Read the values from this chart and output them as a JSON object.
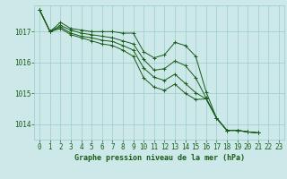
{
  "background_color": "#cce8e8",
  "grid_color": "#99cccc",
  "line_color": "#1a5c1a",
  "text_color": "#1a5c1a",
  "xlabel": "Graphe pression niveau de la mer (hPa)",
  "xlim": [
    -0.5,
    23.5
  ],
  "ylim": [
    1013.5,
    1017.85
  ],
  "yticks": [
    1014,
    1015,
    1016,
    1017
  ],
  "xticks": [
    0,
    1,
    2,
    3,
    4,
    5,
    6,
    7,
    8,
    9,
    10,
    11,
    12,
    13,
    14,
    15,
    16,
    17,
    18,
    19,
    20,
    21,
    22,
    23
  ],
  "series": [
    [
      1017.7,
      1017.0,
      1017.3,
      1017.1,
      1017.05,
      1017.0,
      1017.0,
      1017.0,
      1016.95,
      1016.95,
      1016.35,
      1016.15,
      1016.25,
      1016.65,
      1016.55,
      1016.2,
      1015.05,
      1014.2,
      1013.8,
      1013.8,
      1013.75,
      1013.72
    ],
    [
      1017.7,
      1017.0,
      1017.2,
      1017.05,
      1016.95,
      1016.9,
      1016.85,
      1016.8,
      1016.7,
      1016.6,
      1016.1,
      1015.75,
      1015.8,
      1016.05,
      1015.9,
      1015.5,
      1014.85,
      1014.2,
      1013.8,
      1013.8,
      1013.75,
      1013.72
    ],
    [
      1017.7,
      1017.0,
      1017.15,
      1016.95,
      1016.85,
      1016.8,
      1016.72,
      1016.68,
      1016.55,
      1016.4,
      1015.82,
      1015.52,
      1015.42,
      1015.62,
      1015.32,
      1015.02,
      1014.82,
      1014.2,
      1013.8,
      1013.8,
      1013.75,
      1013.72
    ],
    [
      1017.7,
      1017.0,
      1017.1,
      1016.9,
      1016.8,
      1016.7,
      1016.6,
      1016.55,
      1016.4,
      1016.2,
      1015.5,
      1015.2,
      1015.1,
      1015.3,
      1015.0,
      1014.8,
      1014.82,
      1014.2,
      1013.8,
      1013.8,
      1013.75,
      1013.72
    ]
  ],
  "marker": "+",
  "markersize": 3,
  "linewidth": 0.7,
  "fontsize_label": 6,
  "fontsize_ticks": 5.5
}
